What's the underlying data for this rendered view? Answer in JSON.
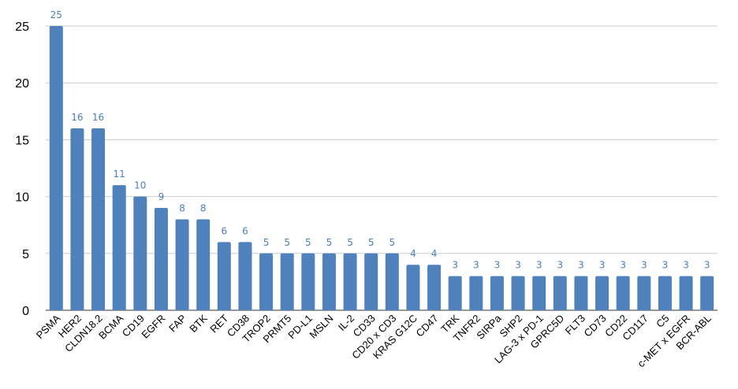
{
  "chart_data": {
    "type": "bar",
    "title": "",
    "xlabel": "",
    "ylabel": "",
    "ylim": [
      0,
      25
    ],
    "yticks": [
      0,
      5,
      10,
      15,
      20,
      25
    ],
    "grid": true,
    "bar_color": "#4f81bd",
    "label_color": "#4a7ebb",
    "categories": [
      "PSMA",
      "HER2",
      "CLDN18.2",
      "BCMA",
      "CD19",
      "EGFR",
      "FAP",
      "BTK",
      "RET",
      "CD38",
      "TROP2",
      "PRMT5",
      "PD-L1",
      "MSLN",
      "IL-2",
      "CD33",
      "CD20 x CD3",
      "KRAS G12C",
      "CD47",
      "TRK",
      "TNFR2",
      "SIRPa",
      "SHP2",
      "LAG-3 x PD-1",
      "GPRC5D",
      "FLT3",
      "CD73",
      "CD22",
      "CD117",
      "C5",
      "c-MET x EGFR",
      "BCR-ABL"
    ],
    "values": [
      25,
      16,
      16,
      11,
      10,
      9,
      8,
      8,
      6,
      6,
      5,
      5,
      5,
      5,
      5,
      5,
      5,
      4,
      4,
      3,
      3,
      3,
      3,
      3,
      3,
      3,
      3,
      3,
      3,
      3,
      3,
      3
    ]
  }
}
